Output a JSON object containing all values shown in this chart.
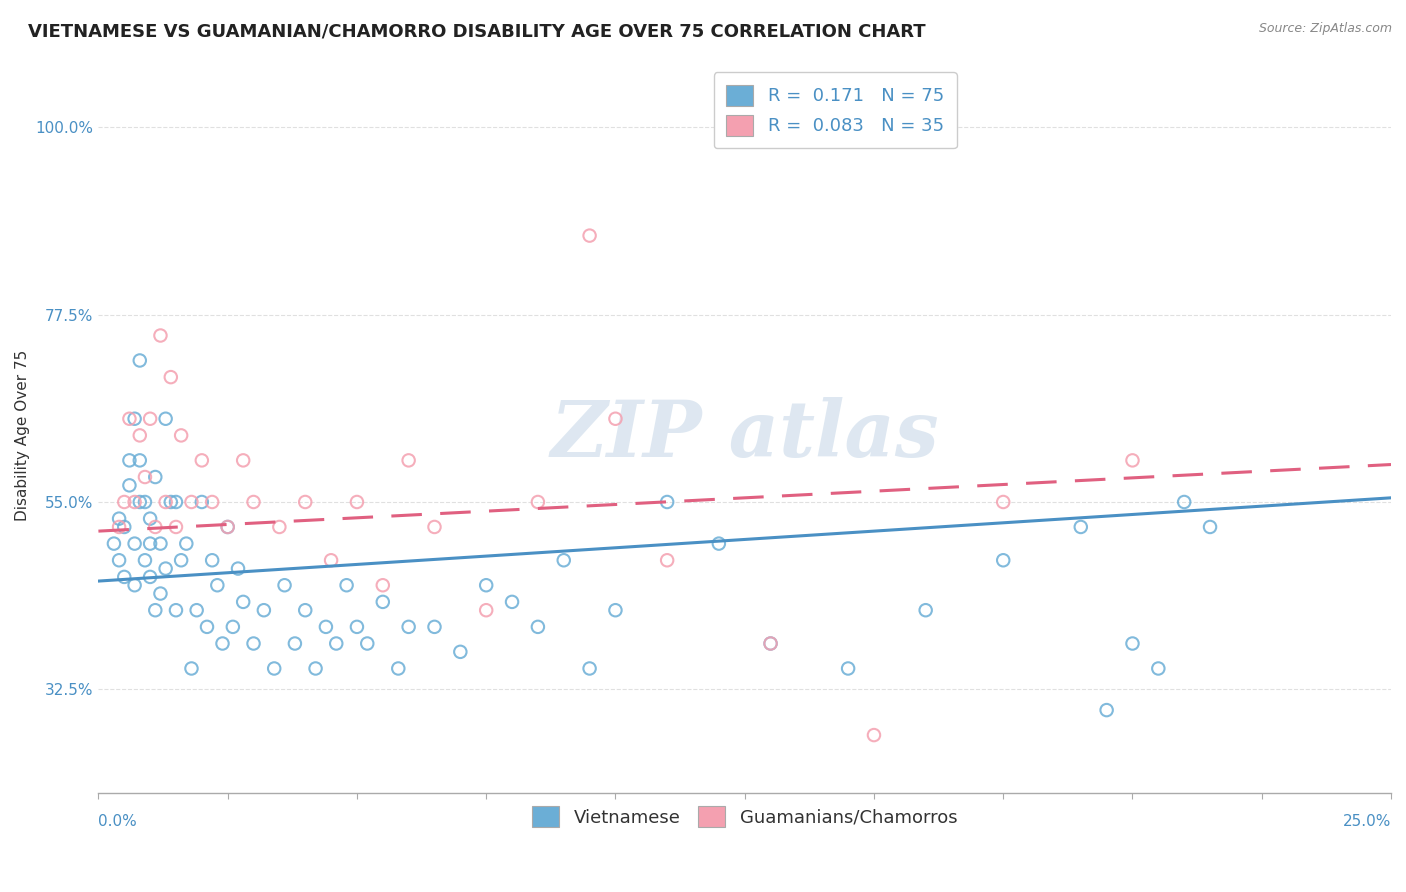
{
  "title": "VIETNAMESE VS GUAMANIAN/CHAMORRO DISABILITY AGE OVER 75 CORRELATION CHART",
  "source": "Source: ZipAtlas.com",
  "ylabel": "Disability Age Over 75",
  "yticks": [
    0.325,
    0.55,
    0.775,
    1.0
  ],
  "ytick_labels": [
    "32.5%",
    "55.0%",
    "77.5%",
    "100.0%"
  ],
  "xmin": 0.0,
  "xmax": 0.25,
  "ymin": 0.2,
  "ymax": 1.06,
  "r_vietnamese": 0.171,
  "n_vietnamese": 75,
  "r_guamanian": 0.083,
  "n_guamanian": 35,
  "color_vietnamese": "#6baed6",
  "color_guamanian": "#f4a0b0",
  "line_color_vietnamese": "#4a90c4",
  "line_color_guamanian": "#e06080",
  "background_color": "#ffffff",
  "grid_color": "#e0e0e0",
  "title_fontsize": 13,
  "axis_label_fontsize": 11,
  "tick_fontsize": 11,
  "legend_fontsize": 13,
  "scatter_seed_v": 101,
  "scatter_seed_g": 202,
  "vietnamese_x": [
    0.003,
    0.004,
    0.004,
    0.005,
    0.005,
    0.006,
    0.006,
    0.007,
    0.007,
    0.007,
    0.008,
    0.008,
    0.008,
    0.009,
    0.009,
    0.01,
    0.01,
    0.01,
    0.011,
    0.011,
    0.012,
    0.012,
    0.013,
    0.013,
    0.014,
    0.015,
    0.015,
    0.016,
    0.017,
    0.018,
    0.019,
    0.02,
    0.021,
    0.022,
    0.023,
    0.024,
    0.025,
    0.026,
    0.027,
    0.028,
    0.03,
    0.032,
    0.034,
    0.036,
    0.038,
    0.04,
    0.042,
    0.044,
    0.046,
    0.048,
    0.05,
    0.052,
    0.055,
    0.058,
    0.06,
    0.065,
    0.07,
    0.075,
    0.08,
    0.085,
    0.09,
    0.095,
    0.1,
    0.11,
    0.12,
    0.13,
    0.145,
    0.16,
    0.175,
    0.19,
    0.195,
    0.2,
    0.205,
    0.21,
    0.215
  ],
  "vietnamese_y": [
    0.5,
    0.53,
    0.48,
    0.46,
    0.52,
    0.6,
    0.57,
    0.5,
    0.65,
    0.45,
    0.55,
    0.6,
    0.72,
    0.48,
    0.55,
    0.5,
    0.46,
    0.53,
    0.42,
    0.58,
    0.5,
    0.44,
    0.47,
    0.65,
    0.55,
    0.42,
    0.55,
    0.48,
    0.5,
    0.35,
    0.42,
    0.55,
    0.4,
    0.48,
    0.45,
    0.38,
    0.52,
    0.4,
    0.47,
    0.43,
    0.38,
    0.42,
    0.35,
    0.45,
    0.38,
    0.42,
    0.35,
    0.4,
    0.38,
    0.45,
    0.4,
    0.38,
    0.43,
    0.35,
    0.4,
    0.4,
    0.37,
    0.45,
    0.43,
    0.4,
    0.48,
    0.35,
    0.42,
    0.55,
    0.5,
    0.38,
    0.35,
    0.42,
    0.48,
    0.52,
    0.3,
    0.38,
    0.35,
    0.55,
    0.52
  ],
  "guamanian_x": [
    0.004,
    0.005,
    0.006,
    0.007,
    0.008,
    0.009,
    0.01,
    0.011,
    0.012,
    0.013,
    0.014,
    0.015,
    0.016,
    0.018,
    0.02,
    0.022,
    0.025,
    0.028,
    0.03,
    0.035,
    0.04,
    0.045,
    0.05,
    0.055,
    0.06,
    0.065,
    0.075,
    0.085,
    0.095,
    0.1,
    0.11,
    0.13,
    0.15,
    0.175,
    0.2
  ],
  "guamanian_y": [
    0.52,
    0.55,
    0.65,
    0.55,
    0.63,
    0.58,
    0.65,
    0.52,
    0.75,
    0.55,
    0.7,
    0.52,
    0.63,
    0.55,
    0.6,
    0.55,
    0.52,
    0.6,
    0.55,
    0.52,
    0.55,
    0.48,
    0.55,
    0.45,
    0.6,
    0.52,
    0.42,
    0.55,
    0.87,
    0.65,
    0.48,
    0.38,
    0.27,
    0.55,
    0.6
  ],
  "regression_v_x0": 0.0,
  "regression_v_x1": 0.25,
  "regression_v_y0": 0.455,
  "regression_v_y1": 0.555,
  "regression_g_x0": 0.0,
  "regression_g_x1": 0.25,
  "regression_g_y0": 0.515,
  "regression_g_y1": 0.595
}
